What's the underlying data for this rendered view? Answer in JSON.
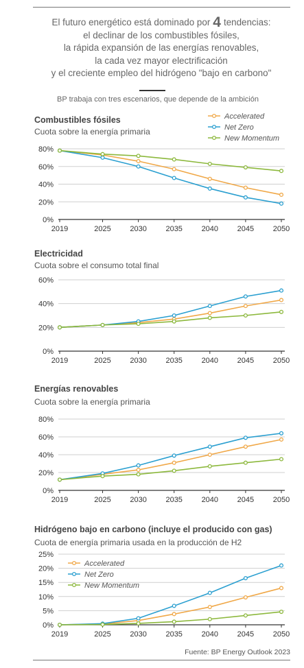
{
  "intro": {
    "line1_pre": "El futuro energético está dominado por",
    "line1_num": "4",
    "line1_post": "tendencias:",
    "line2": "el declinar de los combustibles fósiles,",
    "line3": "la rápida expansión de las  energías renovables,",
    "line4": "la cada vez mayor electrificación",
    "line5": "y el creciente empleo del hidrógeno \"bajo en carbono\""
  },
  "scenarios_note": "BP trabaja con tres escenarios, que depende de la ambición",
  "source": "Fuente: BP Energy Outlook 2023",
  "colors": {
    "Accelerated": "#f0a848",
    "Net Zero": "#2a9fd0",
    "New Momentum": "#8cb83c"
  },
  "chart_data": [
    {
      "type": "line",
      "title": "Combustibles fósiles",
      "subtitle": "Cuota sobre la energía primaria",
      "x": [
        2019,
        2025,
        2030,
        2035,
        2040,
        2045,
        2050
      ],
      "ylim": [
        0,
        80
      ],
      "yticks": [
        0,
        20,
        40,
        60,
        80
      ],
      "ytick_labels": [
        "0%",
        "20%",
        "40%",
        "60%",
        "80%"
      ],
      "legend": "top-right",
      "grid": true,
      "series": [
        {
          "name": "Accelerated",
          "values": [
            78,
            73,
            66,
            57,
            46,
            36,
            28
          ]
        },
        {
          "name": "Net Zero",
          "values": [
            78,
            70,
            60,
            47,
            35,
            25,
            18
          ]
        },
        {
          "name": "New Momentum",
          "values": [
            78,
            74,
            72,
            68,
            63,
            59,
            55
          ]
        }
      ]
    },
    {
      "type": "line",
      "title": "Electricidad",
      "subtitle": "Cuota sobre el consumo total final",
      "x": [
        2019,
        2025,
        2030,
        2035,
        2040,
        2045,
        2050
      ],
      "ylim": [
        0,
        60
      ],
      "yticks": [
        0,
        20,
        40,
        60
      ],
      "ytick_labels": [
        "0%",
        "20%",
        "40%",
        "60%"
      ],
      "grid": true,
      "series": [
        {
          "name": "Accelerated",
          "values": [
            20,
            22,
            24,
            27,
            32,
            38,
            43
          ]
        },
        {
          "name": "Net Zero",
          "values": [
            20,
            22,
            25,
            30,
            38,
            46,
            51
          ]
        },
        {
          "name": "New Momentum",
          "values": [
            20,
            22,
            23,
            25,
            28,
            30,
            33
          ]
        }
      ]
    },
    {
      "type": "line",
      "title": "Energías renovables",
      "subtitle": "Cuota sobre la energía primaria",
      "x": [
        2019,
        2025,
        2030,
        2035,
        2040,
        2045,
        2050
      ],
      "ylim": [
        0,
        80
      ],
      "yticks": [
        0,
        20,
        40,
        60,
        80
      ],
      "ytick_labels": [
        "0%",
        "20%",
        "40%",
        "60%",
        "80%"
      ],
      "grid": true,
      "series": [
        {
          "name": "Accelerated",
          "values": [
            12,
            18,
            23,
            31,
            40,
            49,
            57
          ]
        },
        {
          "name": "Net Zero",
          "values": [
            12,
            19,
            28,
            39,
            49,
            59,
            64
          ]
        },
        {
          "name": "New Momentum",
          "values": [
            12,
            16,
            18,
            22,
            27,
            31,
            35
          ]
        }
      ]
    },
    {
      "type": "line",
      "title": "Hidrógeno bajo en carbono (incluye el producido con gas)",
      "subtitle": "Cuota de energía primaria usada en la producción de  H2",
      "x": [
        2019,
        2025,
        2030,
        2035,
        2040,
        2045,
        2050
      ],
      "ylim": [
        0,
        25
      ],
      "yticks": [
        0,
        5,
        10,
        15,
        20,
        25
      ],
      "ytick_labels": [
        "0%",
        "5%",
        "10%",
        "15%",
        "20%",
        "25%"
      ],
      "legend": "top-left",
      "grid": true,
      "series": [
        {
          "name": "Accelerated",
          "values": [
            0,
            0.3,
            1.5,
            3.8,
            6.3,
            9.7,
            13
          ]
        },
        {
          "name": "Net Zero",
          "values": [
            0,
            0.4,
            2.3,
            6.7,
            11.3,
            16.5,
            21
          ]
        },
        {
          "name": "New Momentum",
          "values": [
            0,
            0.1,
            0.5,
            1.1,
            2,
            3.3,
            4.6
          ]
        }
      ]
    }
  ]
}
